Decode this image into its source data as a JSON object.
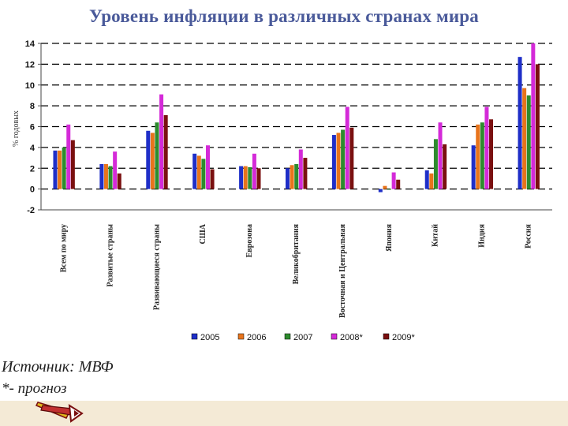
{
  "title": "Уровень инфляции в различных странах мира",
  "source_text": "Источник: МВФ",
  "note_text": "*- прогноз",
  "colors": {
    "title": "#4a5a9a",
    "series": [
      "#1f2fc8",
      "#e8741c",
      "#2e8b2e",
      "#d42ad8",
      "#7a1010"
    ]
  },
  "chart_data": {
    "type": "bar",
    "title": "Уровень инфляции в различных странах мира",
    "ylabel": "% годовых",
    "ylim": [
      -2,
      14
    ],
    "yticks": [
      -2,
      0,
      2,
      4,
      6,
      8,
      10,
      12,
      14
    ],
    "grid": true,
    "legend_position": "bottom",
    "categories": [
      "Всем по миру",
      "Развитые страны",
      "Развивающиеся страны",
      "США",
      "Еврозона",
      "Великобритания",
      "Восточная и Центральная",
      "Япония",
      "Китай",
      "Индия",
      "Россия"
    ],
    "series": [
      {
        "name": "2005",
        "values": [
          3.7,
          2.4,
          5.6,
          3.4,
          2.2,
          2.0,
          5.2,
          -0.3,
          1.8,
          4.2,
          12.7
        ]
      },
      {
        "name": "2006",
        "values": [
          3.7,
          2.4,
          5.4,
          3.2,
          2.2,
          2.3,
          5.4,
          0.3,
          1.5,
          6.2,
          9.7
        ]
      },
      {
        "name": "2007",
        "values": [
          4.0,
          2.2,
          6.4,
          2.9,
          2.1,
          2.4,
          5.7,
          0.0,
          4.8,
          6.4,
          9.0
        ]
      },
      {
        "name": "2008*",
        "values": [
          6.2,
          3.6,
          9.1,
          4.2,
          3.4,
          3.8,
          7.9,
          1.6,
          6.4,
          7.9,
          14.0
        ]
      },
      {
        "name": "2009*",
        "values": [
          4.7,
          1.5,
          7.1,
          1.9,
          2.0,
          3.0,
          5.9,
          0.9,
          4.3,
          6.7,
          12.0
        ]
      }
    ]
  }
}
